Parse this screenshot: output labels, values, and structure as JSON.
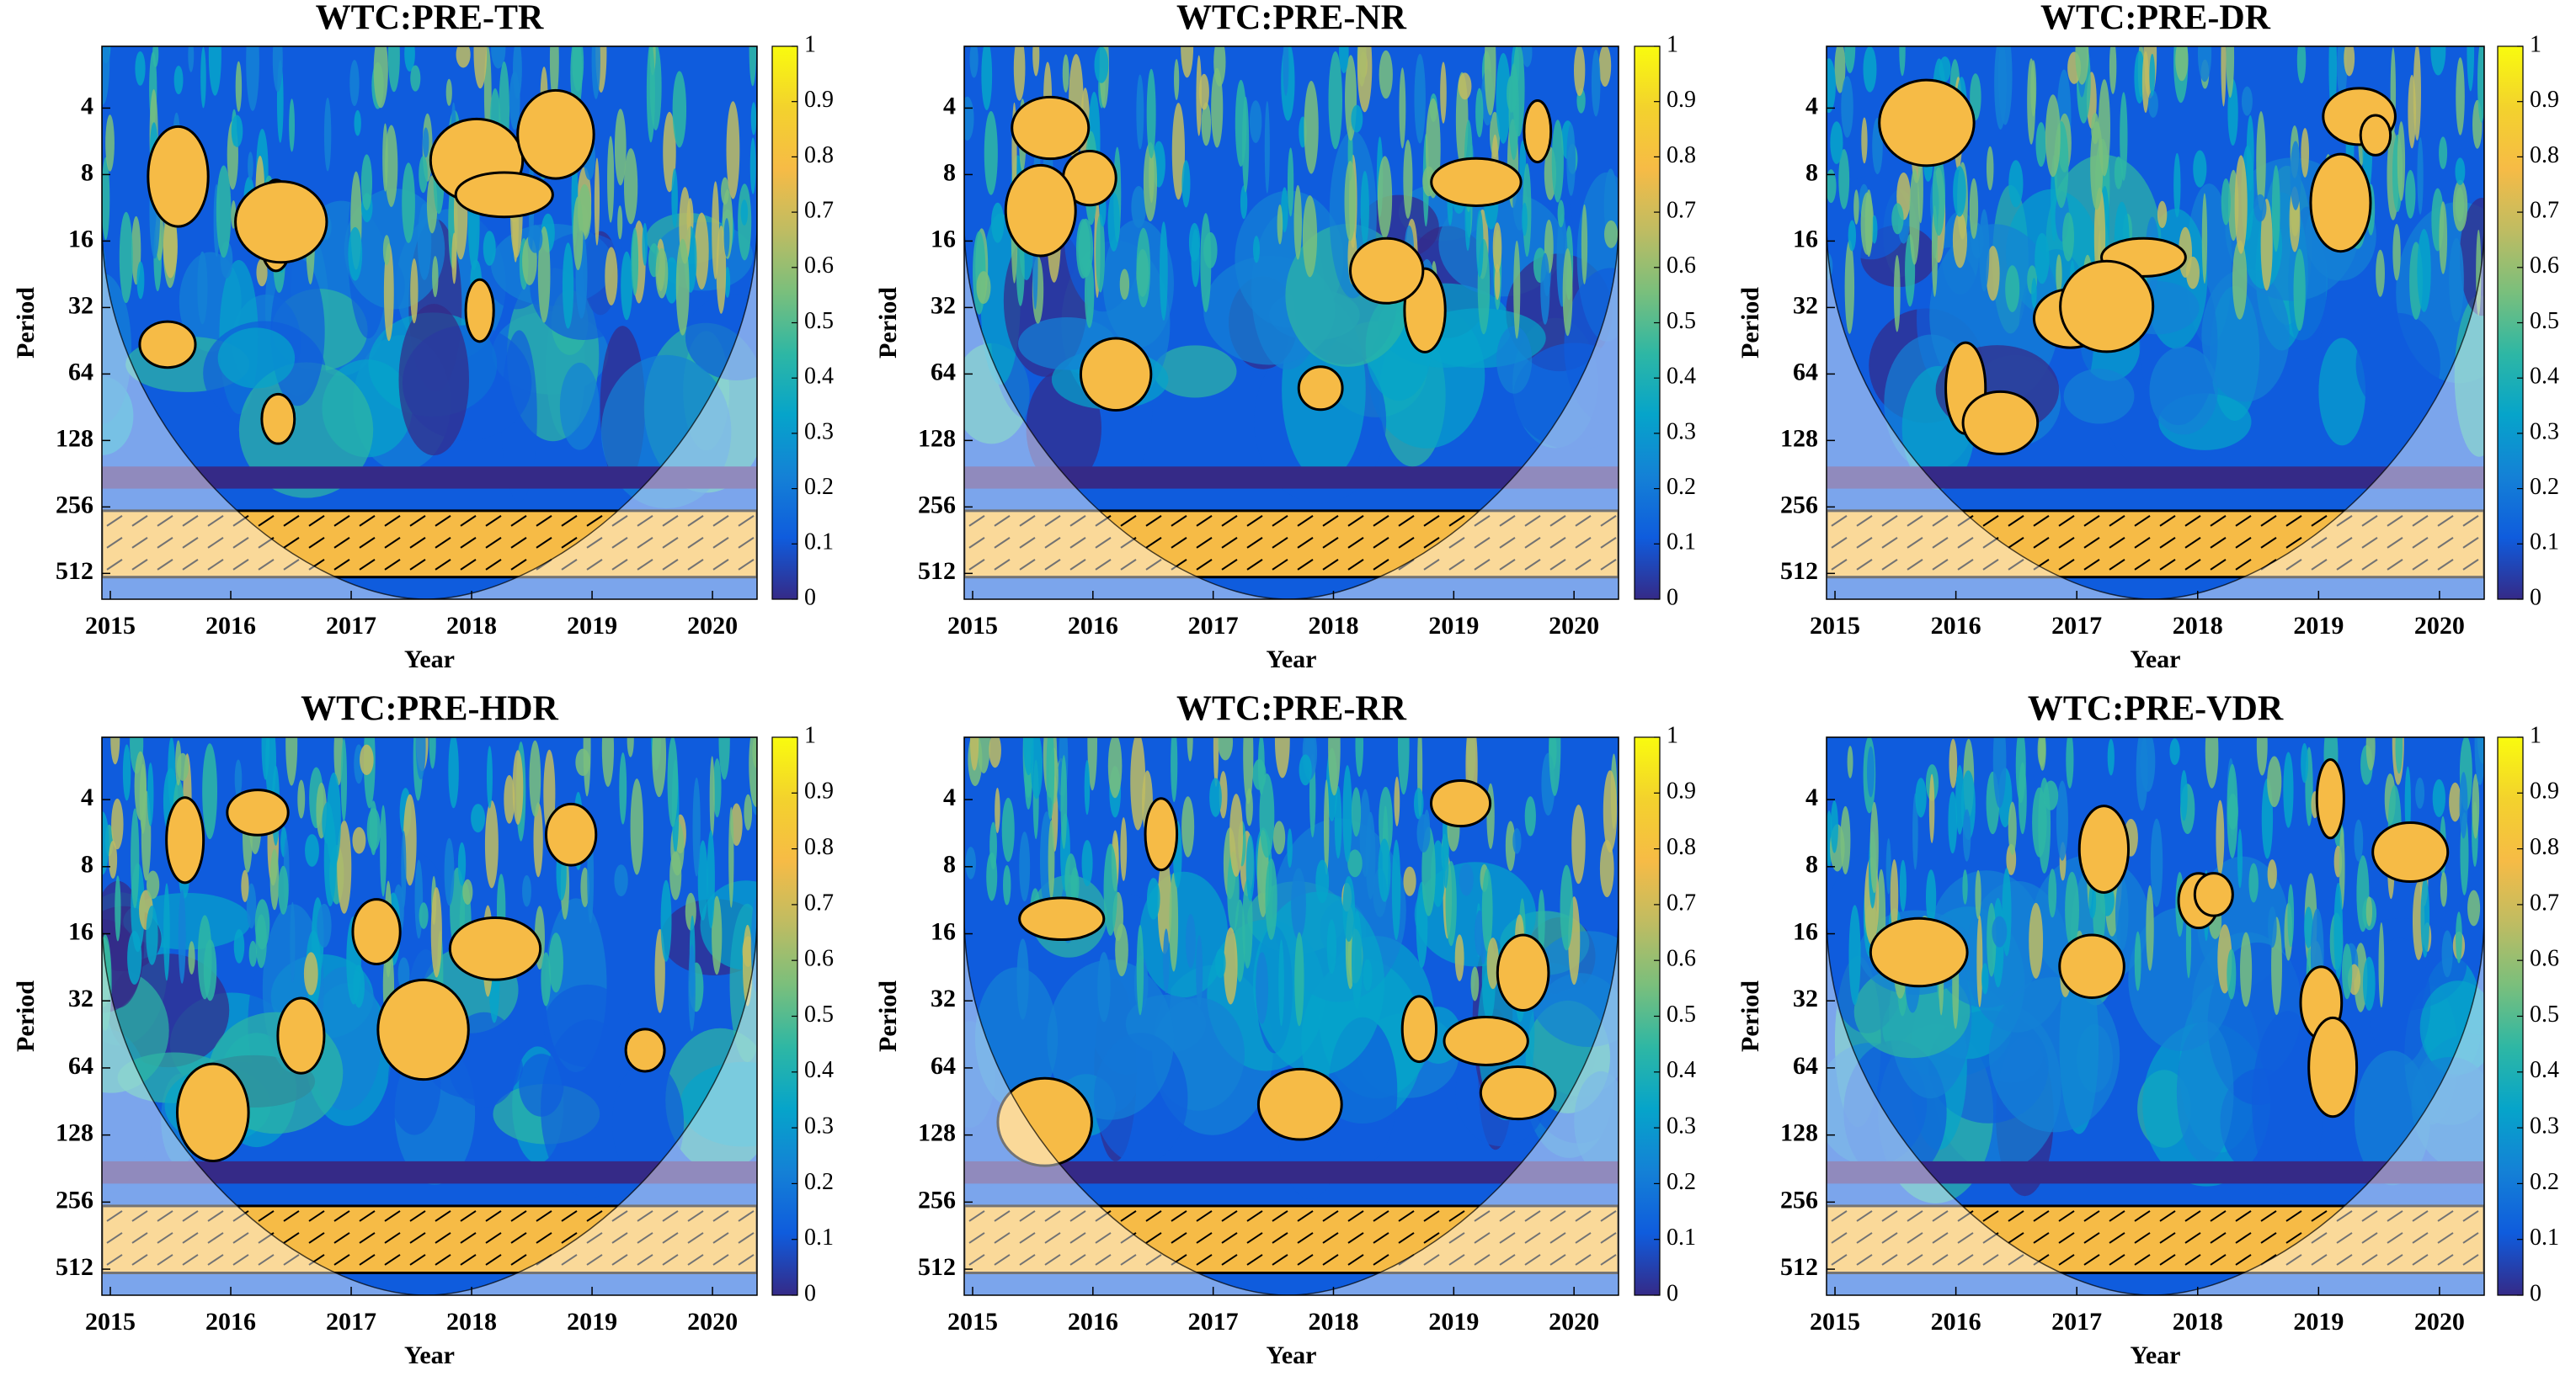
{
  "chart_data": [
    {
      "type": "heatmap",
      "title": "WTC:PRE-TR",
      "xlabel": "Year",
      "ylabel": "Period",
      "xlim": [
        2014.93,
        2020.37
      ],
      "xticks": [
        2015,
        2016,
        2017,
        2018,
        2019,
        2020
      ],
      "ylim": [
        2.1,
        670
      ],
      "yticks": [
        4,
        8,
        16,
        32,
        64,
        128,
        256,
        512
      ],
      "log_y": true,
      "y_reversed": true,
      "clim": [
        0,
        1
      ],
      "cticks": [
        0,
        0.1,
        0.2,
        0.3,
        0.4,
        0.5,
        0.6,
        0.7,
        0.8,
        0.9,
        1
      ],
      "colormap": [
        "#352a87",
        "#0f5cdd",
        "#1481d6",
        "#06a4ca",
        "#2eb7a4",
        "#7abf7c",
        "#bfbc62",
        "#f6bb46",
        "#f3d22d",
        "#f9fb0e"
      ]
    },
    {
      "type": "heatmap",
      "title": "WTC:PRE-NR",
      "xlabel": "Year",
      "ylabel": "Period",
      "xlim": [
        2014.93,
        2020.37
      ],
      "xticks": [
        2015,
        2016,
        2017,
        2018,
        2019,
        2020
      ],
      "ylim": [
        2.1,
        670
      ],
      "yticks": [
        4,
        8,
        16,
        32,
        64,
        128,
        256,
        512
      ],
      "log_y": true,
      "y_reversed": true,
      "clim": [
        0,
        1
      ],
      "cticks": [
        0,
        0.1,
        0.2,
        0.3,
        0.4,
        0.5,
        0.6,
        0.7,
        0.8,
        0.9,
        1
      ],
      "colormap": [
        "#352a87",
        "#0f5cdd",
        "#1481d6",
        "#06a4ca",
        "#2eb7a4",
        "#7abf7c",
        "#bfbc62",
        "#f6bb46",
        "#f3d22d",
        "#f9fb0e"
      ]
    },
    {
      "type": "heatmap",
      "title": "WTC:PRE-DR",
      "xlabel": "Year",
      "ylabel": "Period",
      "xlim": [
        2014.93,
        2020.37
      ],
      "xticks": [
        2015,
        2016,
        2017,
        2018,
        2019,
        2020
      ],
      "ylim": [
        2.1,
        670
      ],
      "yticks": [
        4,
        8,
        16,
        32,
        64,
        128,
        256,
        512
      ],
      "log_y": true,
      "y_reversed": true,
      "clim": [
        0,
        1
      ],
      "cticks": [
        0,
        0.1,
        0.2,
        0.3,
        0.4,
        0.5,
        0.6,
        0.7,
        0.8,
        0.9,
        1
      ],
      "colormap": [
        "#352a87",
        "#0f5cdd",
        "#1481d6",
        "#06a4ca",
        "#2eb7a4",
        "#7abf7c",
        "#bfbc62",
        "#f6bb46",
        "#f3d22d",
        "#f9fb0e"
      ]
    },
    {
      "type": "heatmap",
      "title": "WTC:PRE-HDR",
      "xlabel": "Year",
      "ylabel": "Period",
      "xlim": [
        2014.93,
        2020.37
      ],
      "xticks": [
        2015,
        2016,
        2017,
        2018,
        2019,
        2020
      ],
      "ylim": [
        2.1,
        670
      ],
      "yticks": [
        4,
        8,
        16,
        32,
        64,
        128,
        256,
        512
      ],
      "log_y": true,
      "y_reversed": true,
      "clim": [
        0,
        1
      ],
      "cticks": [
        0,
        0.1,
        0.2,
        0.3,
        0.4,
        0.5,
        0.6,
        0.7,
        0.8,
        0.9,
        1
      ],
      "colormap": [
        "#352a87",
        "#0f5cdd",
        "#1481d6",
        "#06a4ca",
        "#2eb7a4",
        "#7abf7c",
        "#bfbc62",
        "#f6bb46",
        "#f3d22d",
        "#f9fb0e"
      ]
    },
    {
      "type": "heatmap",
      "title": "WTC:PRE-RR",
      "xlabel": "Year",
      "ylabel": "Period",
      "xlim": [
        2014.93,
        2020.37
      ],
      "xticks": [
        2015,
        2016,
        2017,
        2018,
        2019,
        2020
      ],
      "ylim": [
        2.1,
        670
      ],
      "yticks": [
        4,
        8,
        16,
        32,
        64,
        128,
        256,
        512
      ],
      "log_y": true,
      "y_reversed": true,
      "clim": [
        0,
        1
      ],
      "cticks": [
        0,
        0.1,
        0.2,
        0.3,
        0.4,
        0.5,
        0.6,
        0.7,
        0.8,
        0.9,
        1
      ],
      "colormap": [
        "#352a87",
        "#0f5cdd",
        "#1481d6",
        "#06a4ca",
        "#2eb7a4",
        "#7abf7c",
        "#bfbc62",
        "#f6bb46",
        "#f3d22d",
        "#f9fb0e"
      ]
    },
    {
      "type": "heatmap",
      "title": "WTC:PRE-VDR",
      "xlabel": "Year",
      "ylabel": "Period",
      "xlim": [
        2014.93,
        2020.37
      ],
      "xticks": [
        2015,
        2016,
        2017,
        2018,
        2019,
        2020
      ],
      "ylim": [
        2.1,
        670
      ],
      "yticks": [
        4,
        8,
        16,
        32,
        64,
        128,
        256,
        512
      ],
      "log_y": true,
      "y_reversed": true,
      "clim": [
        0,
        1
      ],
      "cticks": [
        0,
        0.1,
        0.2,
        0.3,
        0.4,
        0.5,
        0.6,
        0.7,
        0.8,
        0.9,
        1
      ],
      "colormap": [
        "#352a87",
        "#0f5cdd",
        "#1481d6",
        "#06a4ca",
        "#2eb7a4",
        "#7abf7c",
        "#bfbc62",
        "#f6bb46",
        "#f3d22d",
        "#f9fb0e"
      ]
    }
  ]
}
